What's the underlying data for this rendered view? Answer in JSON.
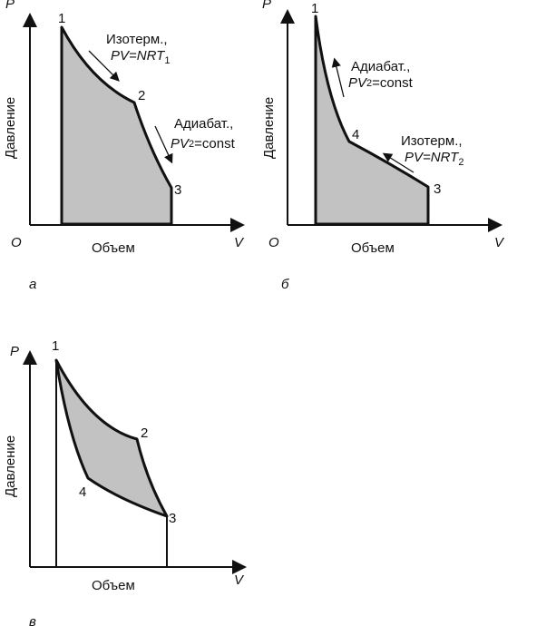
{
  "axis": {
    "p": "P",
    "v": "V",
    "origin": "O",
    "pressure": "Давление",
    "volume": "Объем"
  },
  "points": {
    "p1": "1",
    "p2": "2",
    "p3": "3",
    "p4": "4"
  },
  "labels": {
    "isotherm": "Изотерм.,",
    "adiabat": "Адиабат.,",
    "pv": "PV",
    "eq_nrt": "=NRT",
    "sub1": "1",
    "sub2": "2",
    "pv2_sup": "2",
    "eq_const": "=const"
  },
  "panels": {
    "a": "а",
    "b": "б",
    "c": "в"
  },
  "colors": {
    "fill": "#c2c2c2",
    "line": "#111111"
  }
}
